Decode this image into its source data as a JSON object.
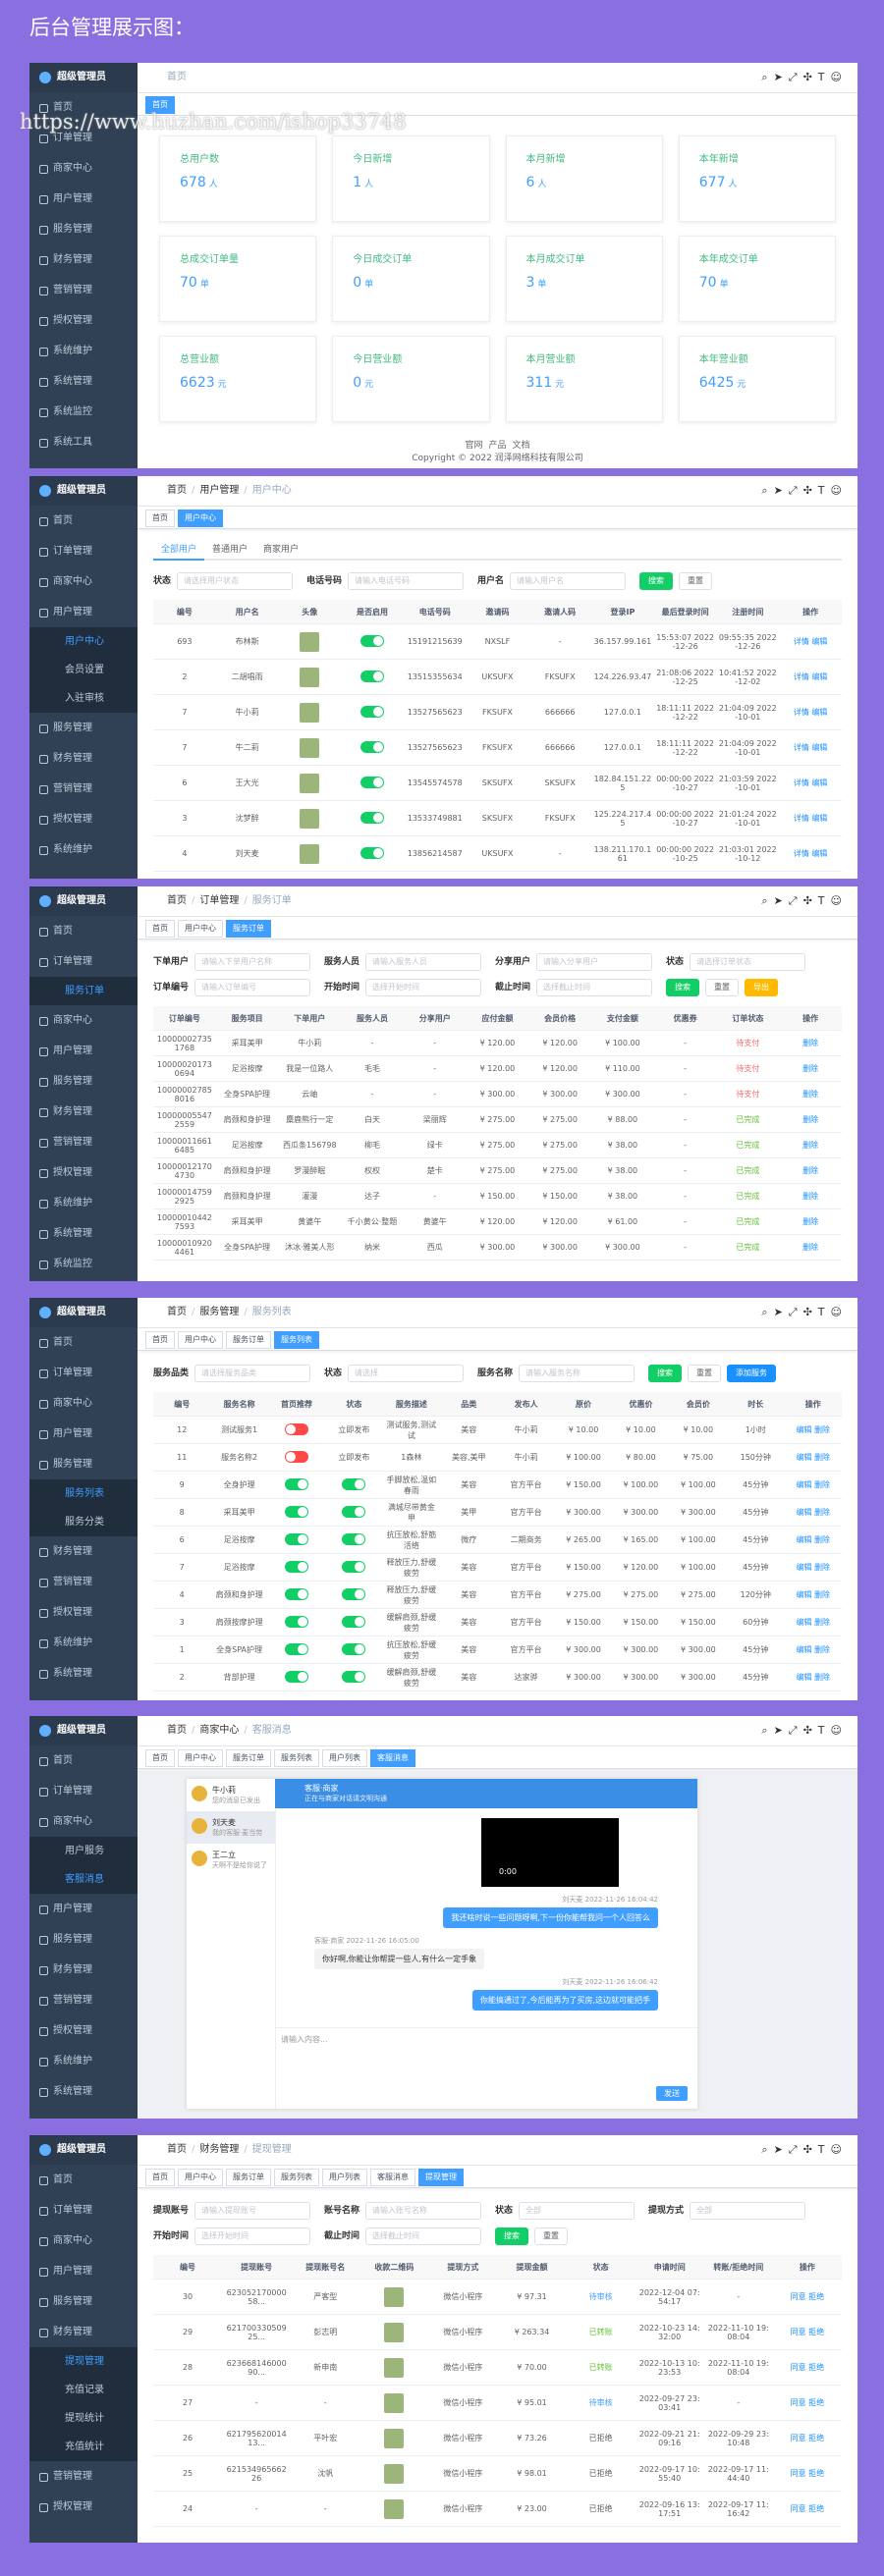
{
  "header": {
    "title": "后台管理展示图："
  },
  "watermark": "https://www.huzhan.com/ishop33748",
  "panels": [
    {
      "logo": "超级管理员",
      "menu": [
        "首页",
        "订单管理",
        "商家中心",
        "用户管理",
        "服务管理",
        "财务管理",
        "营销管理",
        "授权管理",
        "系统维护",
        "系统管理",
        "系统监控",
        "系统工具"
      ],
      "breadcrumb": [
        "首页"
      ],
      "tabs": [
        "首页"
      ],
      "cards": [
        {
          "label": "总用户数",
          "value": 678,
          "unit": "人"
        },
        {
          "label": "今日新增",
          "value": 1,
          "unit": "人"
        },
        {
          "label": "本月新增",
          "value": 6,
          "unit": "人"
        },
        {
          "label": "本年新增",
          "value": 677,
          "unit": "人"
        },
        {
          "label": "总成交订单量",
          "value": 70,
          "unit": "单"
        },
        {
          "label": "今日成交订单",
          "value": 0,
          "unit": "单"
        },
        {
          "label": "本月成交订单",
          "value": 3,
          "unit": "单"
        },
        {
          "label": "本年成交订单",
          "value": 70,
          "unit": "单"
        },
        {
          "label": "总营业额",
          "value": 6623,
          "unit": "元"
        },
        {
          "label": "今日营业额",
          "value": 0,
          "unit": "元"
        },
        {
          "label": "本月营业额",
          "value": 311,
          "unit": "元"
        },
        {
          "label": "本年营业额",
          "value": 6425,
          "unit": "元"
        }
      ],
      "footer": {
        "links": [
          "官网",
          "产品",
          "文档"
        ],
        "copyright": "Copyright © 2022 润泽网络科技有限公司"
      }
    },
    {
      "logo": "超级管理员",
      "menu": [
        "首页",
        "订单管理",
        "商家中心",
        {
          "label": "用户管理",
          "children": [
            "用户中心",
            "会员设置",
            "入驻审核"
          ]
        },
        "服务管理",
        "财务管理",
        "营销管理",
        "授权管理",
        "系统维护"
      ],
      "breadcrumb": [
        "首页",
        "用户管理",
        "用户中心"
      ],
      "tabs": [
        "首页",
        "用户中心"
      ],
      "table": {
        "subtabs": [
          "全部用户",
          "普通用户",
          "商家用户"
        ],
        "filters": [
          {
            "label": "状态",
            "placeholder": "请选择用户状态"
          },
          {
            "label": "电话号码",
            "placeholder": "请输入电话号码"
          },
          {
            "label": "用户名",
            "placeholder": "请输入用户名"
          }
        ],
        "buttons": [
          "搜索",
          "重置"
        ],
        "columns": [
          "编号",
          "用户名",
          "头像",
          "是否启用",
          "电话号码",
          "邀请码",
          "邀请人码",
          "登录IP",
          "最后登录时间",
          "注册时间",
          "操作"
        ],
        "rows": [
          [
            693,
            "布林斯",
            null,
            true,
            "15191215639",
            "NXSLF",
            "-",
            "36.157.99.161",
            "15:53:07 2022-12-26",
            "09:55:35 2022-12-26",
            "详情 编辑"
          ],
          [
            2,
            "二胡唱雨",
            null,
            true,
            "13515355634",
            "UKSUFX",
            "FKSUFX",
            "124.226.93.47",
            "21:08:06 2022-12-25",
            "10:41:52 2022-12-02",
            "详情 编辑"
          ],
          [
            7,
            "牛小莉",
            null,
            true,
            "13527565623",
            "FKSUFX",
            "666666",
            "127.0.0.1",
            "18:11:11 2022-12-22",
            "21:04:09 2022-10-01",
            "详情 编辑"
          ],
          [
            7,
            "牛二莉",
            null,
            true,
            "13527565623",
            "FKSUFX",
            "666666",
            "127.0.0.1",
            "18:11:11 2022-12-22",
            "21:04:09 2022-10-01",
            "详情 编辑"
          ],
          [
            6,
            "王大光",
            null,
            true,
            "13545574578",
            "SKSUFX",
            "SKSUFX",
            "182.84.151.225",
            "00:00:00 2022-10-27",
            "21:03:59 2022-10-01",
            "详情 编辑"
          ],
          [
            3,
            "沈梦醉",
            null,
            true,
            "13533749881",
            "SKSUFX",
            "FKSUFX",
            "125.224.217.45",
            "00:00:00 2022-10-27",
            "21:01:24 2022-10-01",
            "详情 编辑"
          ],
          [
            4,
            "刘天麦",
            null,
            true,
            "13856214587",
            "UKSUFX",
            "-",
            "138.211.170.161",
            "00:00:00 2022-10-25",
            "21:03:01 2022-10-12",
            "详情 编辑"
          ]
        ]
      }
    },
    {
      "logo": "超级管理员",
      "menu": [
        "首页",
        {
          "label": "订单管理",
          "children": [
            "服务订单"
          ]
        },
        "商家中心",
        "用户管理",
        "服务管理",
        "财务管理",
        "营销管理",
        "授权管理",
        "系统维护",
        "系统管理",
        "系统监控"
      ],
      "breadcrumb": [
        "首页",
        "订单管理",
        "服务订单"
      ],
      "tabs": [
        "首页",
        "用户中心",
        "服务订单"
      ],
      "table": {
        "filters": [
          {
            "label": "下单用户",
            "placeholder": "请输入下单用户名称"
          },
          {
            "label": "服务人员",
            "placeholder": "请输入服务人员"
          },
          {
            "label": "分享用户",
            "placeholder": "请输入分享用户"
          },
          {
            "label": "状态",
            "placeholder": "请选择订单状态"
          },
          {
            "label": "订单编号",
            "placeholder": "请输入订单编号"
          },
          {
            "label": "开始时间",
            "placeholder": "选择开始时间"
          },
          {
            "label": "截止时间",
            "placeholder": "选择截止时间"
          }
        ],
        "buttons": [
          "搜索",
          "重置",
          "导出"
        ],
        "columns": [
          "订单编号",
          "服务项目",
          "下单用户",
          "服务人员",
          "分享用户",
          "应付金额",
          "会员价格",
          "支付金额",
          "优惠券",
          "订单状态",
          "操作"
        ],
        "status_column": 9,
        "rows": [
          [
            "100000027351768",
            "采耳美甲",
            "牛小莉",
            "-",
            "-",
            "¥ 120.00",
            "¥ 120.00",
            "¥ 100.00",
            "-",
            "待支付",
            "删除"
          ],
          [
            "100000201730694",
            "足浴按摩",
            "我是一位路人",
            "毛毛",
            "-",
            "¥ 120.00",
            "¥ 120.00",
            "¥ 110.00",
            "-",
            "待支付",
            "删除"
          ],
          [
            "100000027858016",
            "全身SPA护理",
            "云岫",
            "-",
            "-",
            "¥ 300.00",
            "¥ 300.00",
            "¥ 300.00",
            "-",
            "待支付",
            "删除"
          ],
          [
            "100000055472559",
            "肩颈和身护理",
            "麋鹿熊行一定",
            "白天",
            "梁丽辉",
            "¥ 275.00",
            "¥ 275.00",
            "¥ 88.00",
            "-",
            "已完成",
            "删除"
          ],
          [
            "100000116616485",
            "足浴按摩",
            "西瓜条156798",
            "柳毛",
            "绿卡",
            "¥ 275.00",
            "¥ 275.00",
            "¥ 38.00",
            "-",
            "已完成",
            "删除"
          ],
          [
            "100000121704730",
            "肩颈和身护理",
            "罗漫醉眠",
            "权权",
            "楚卡",
            "¥ 275.00",
            "¥ 275.00",
            "¥ 38.00",
            "-",
            "已完成",
            "删除"
          ],
          [
            "100000147592925",
            "肩颈和身护理",
            "灌漫",
            "达子",
            "-",
            "¥ 150.00",
            "¥ 150.00",
            "¥ 38.00",
            "-",
            "已完成",
            "删除"
          ],
          [
            "100000104427593",
            "采耳美甲",
            "黄婆午",
            "千小黄公·整题",
            "黄婆午",
            "¥ 120.00",
            "¥ 120.00",
            "¥ 61.00",
            "-",
            "已完成",
            "删除"
          ],
          [
            "100000109204461",
            "全身SPA护理",
            "沐冰·雅美人形",
            "纳米",
            "西瓜",
            "¥ 300.00",
            "¥ 300.00",
            "¥ 300.00",
            "-",
            "已完成",
            "删除"
          ]
        ],
        "status_colors": [
          "#f56c6c",
          "#f56c6c",
          "#f56c6c",
          "#67c23a",
          "#67c23a",
          "#67c23a",
          "#67c23a",
          "#67c23a",
          "#67c23a"
        ]
      }
    },
    {
      "logo": "超级管理员",
      "menu": [
        "首页",
        "订单管理",
        "商家中心",
        "用户管理",
        {
          "label": "服务管理",
          "children": [
            "服务列表",
            "服务分类"
          ]
        },
        "财务管理",
        "营销管理",
        "授权管理",
        "系统维护",
        "系统管理"
      ],
      "breadcrumb": [
        "首页",
        "服务管理",
        "服务列表"
      ],
      "tabs": [
        "首页",
        "用户中心",
        "服务订单",
        "服务列表"
      ],
      "table": {
        "filters": [
          {
            "label": "服务品类",
            "placeholder": "请选择服务品类"
          },
          {
            "label": "状态",
            "placeholder": "请选择"
          },
          {
            "label": "服务名称",
            "placeholder": "请输入服务名称"
          }
        ],
        "buttons": [
          "搜索",
          "重置",
          "添加服务"
        ],
        "columns": [
          "编号",
          "服务名称",
          "首页推荐",
          "状态",
          "服务描述",
          "品类",
          "发布人",
          "原价",
          "优惠价",
          "会员价",
          "时长",
          "操作"
        ],
        "rows": [
          [
            12,
            "测试服务1",
            false,
            "立即发布",
            "测试服务,测试试",
            "美容",
            "牛小莉",
            "¥ 10.00",
            "¥ 10.00",
            "¥ 10.00",
            "1小时",
            "编辑 删除"
          ],
          [
            11,
            "服务名称2",
            false,
            "立即发布",
            "1森林",
            "美容,美甲",
            "牛小莉",
            "¥ 100.00",
            "¥ 80.00",
            "¥ 75.00",
            "150分钟",
            "编辑 删除"
          ],
          [
            9,
            "全身护理",
            true,
            true,
            "手脚放松,温如春雨",
            "美容",
            "官方平台",
            "¥ 150.00",
            "¥ 100.00",
            "¥ 100.00",
            "45分钟",
            "编辑 删除"
          ],
          [
            8,
            "采耳美甲",
            true,
            true,
            "满城尽带黄金甲",
            "美甲",
            "官方平台",
            "¥ 300.00",
            "¥ 300.00",
            "¥ 300.00",
            "45分钟",
            "编辑 删除"
          ],
          [
            6,
            "足浴按摩",
            true,
            true,
            "抗压放松,舒筋活络",
            "微疗",
            "二期商务",
            "¥ 265.00",
            "¥ 165.00",
            "¥ 100.00",
            "45分钟",
            "编辑 删除"
          ],
          [
            7,
            "足浴按摩",
            true,
            true,
            "释放压力,舒缓疲劳",
            "美容",
            "官方平台",
            "¥ 150.00",
            "¥ 120.00",
            "¥ 100.00",
            "45分钟",
            "编辑 删除"
          ],
          [
            4,
            "肩颈和身护理",
            true,
            true,
            "释放压力,舒缓疲劳",
            "美容",
            "官方平台",
            "¥ 275.00",
            "¥ 275.00",
            "¥ 275.00",
            "120分钟",
            "编辑 删除"
          ],
          [
            3,
            "肩颈按摩护理",
            true,
            true,
            "缓解肩颈,舒缓疲劳",
            "美容",
            "官方平台",
            "¥ 150.00",
            "¥ 150.00",
            "¥ 150.00",
            "60分钟",
            "编辑 删除"
          ],
          [
            1,
            "全身SPA护理",
            true,
            true,
            "抗压放松,舒缓疲劳",
            "美容",
            "官方平台",
            "¥ 300.00",
            "¥ 300.00",
            "¥ 300.00",
            "45分钟",
            "编辑 删除"
          ],
          [
            2,
            "背部护理",
            true,
            true,
            "缓解肩颈,舒缓疲劳",
            "美容",
            "达家骅",
            "¥ 300.00",
            "¥ 300.00",
            "¥ 300.00",
            "45分钟",
            "编辑 删除"
          ]
        ]
      }
    },
    {
      "logo": "超级管理员",
      "menu": [
        "首页",
        "订单管理",
        {
          "label": "商家中心",
          "children": [
            "用户服务",
            "客服消息"
          ]
        },
        "用户管理",
        "服务管理",
        "财务管理",
        "营销管理",
        "授权管理",
        "系统维护",
        "系统管理"
      ],
      "breadcrumb": [
        "首页",
        "商家中心",
        "客服消息"
      ],
      "tabs": [
        "首页",
        "用户中心",
        "服务订单",
        "服务列表",
        "用户列表",
        "客服消息"
      ],
      "chat": {
        "contacts": [
          {
            "name": "牛小莉",
            "msg": "您的消息已发出"
          },
          {
            "name": "刘天麦",
            "msg": "我的客服·麦当劳"
          },
          {
            "name": "王二立",
            "msg": "天啊不是给你说了"
          }
        ],
        "head": {
          "name": "客服·商家",
          "sub": "正在与商家对话请文明沟通"
        },
        "video": "0:00",
        "messages": [
          {
            "side": "right",
            "time": "刘天麦 2022-11-26 16:04:42",
            "text": "我还啥时说一些问题呀啊,下一份你能帮我问一个人回答么"
          },
          {
            "side": "left",
            "time": "客服·商家 2022-11-26 16:05:00",
            "text": "你好啊,你能让你帮提一些人,有什么一定手象"
          },
          {
            "side": "right",
            "time": "刘天麦 2022-11-26 16:06:42",
            "text": "你能搞通过了,今后能再为了买房,这边就可能把手"
          }
        ],
        "placeholder": "请输入内容...",
        "send": "发送"
      }
    },
    {
      "logo": "超级管理员",
      "menu": [
        "首页",
        "订单管理",
        "商家中心",
        "用户管理",
        "服务管理",
        {
          "label": "财务管理",
          "children": [
            "提现管理",
            "充值记录",
            "提现统计",
            "充值统计"
          ]
        },
        "营销管理",
        "授权管理"
      ],
      "breadcrumb": [
        "首页",
        "财务管理",
        "提现管理"
      ],
      "tabs": [
        "首页",
        "用户中心",
        "服务订单",
        "服务列表",
        "用户列表",
        "客服消息",
        "提现管理"
      ],
      "table": {
        "filters": [
          {
            "label": "提现账号",
            "placeholder": "请输入提现账号"
          },
          {
            "label": "账号名称",
            "placeholder": "请输入账号名称"
          },
          {
            "label": "状态",
            "placeholder": "全部"
          },
          {
            "label": "提现方式",
            "placeholder": "全部"
          },
          {
            "label": "开始时间",
            "placeholder": "选择开始时间"
          },
          {
            "label": "截止时间",
            "placeholder": "选择截止时间"
          }
        ],
        "buttons": [
          "搜索",
          "重置"
        ],
        "columns": [
          "编号",
          "提现账号",
          "提现账号名",
          "收款二维码",
          "提现方式",
          "提现金额",
          "状态",
          "申请时间",
          "转账/拒绝时间",
          "操作"
        ],
        "status_column": 6,
        "rows": [
          [
            30,
            "62305217000058...",
            "严客型",
            null,
            "微信小程序",
            "¥ 97.31",
            "待审核",
            "2022-12-04 07:54:17",
            "-",
            "同意 拒绝"
          ],
          [
            29,
            "62170033050925...",
            "彭志明",
            null,
            "微信小程序",
            "¥ 263.34",
            "已转账",
            "2022-10-23 14:32:00",
            "2022-11-10 19:08:04",
            "同意 拒绝"
          ],
          [
            28,
            "62366814600090...",
            "新申南",
            null,
            "微信小程序",
            "¥ 70.00",
            "已转账",
            "2022-10-13 10:23:53",
            "2022-11-10 19:08:04",
            "同意 拒绝"
          ],
          [
            27,
            "-",
            "-",
            null,
            "微信小程序",
            "¥ 95.01",
            "待审核",
            "2022-09-27 23:03:41",
            "-",
            "同意 拒绝"
          ],
          [
            26,
            "62179562001413...",
            "平叶宏",
            null,
            "微信小程序",
            "¥ 73.26",
            "已拒绝",
            "2022-09-21 21:09:16",
            "2022-09-29 23:10:48",
            "同意 拒绝"
          ],
          [
            25,
            "62153496566226",
            "沈帆",
            null,
            "微信小程序",
            "¥ 98.01",
            "已拒绝",
            "2022-09-17 10:55:40",
            "2022-09-17 11:44:40",
            "同意 拒绝"
          ],
          [
            24,
            "-",
            "-",
            null,
            "微信小程序",
            "¥ 23.00",
            "已拒绝",
            "2022-09-16 13:17:51",
            "2022-09-17 11:16:42",
            "同意 拒绝"
          ]
        ],
        "status_colors": [
          "#409eff",
          "#67c23a",
          "#67c23a",
          "#409eff",
          "#606266",
          "#606266",
          "#606266"
        ]
      }
    }
  ]
}
